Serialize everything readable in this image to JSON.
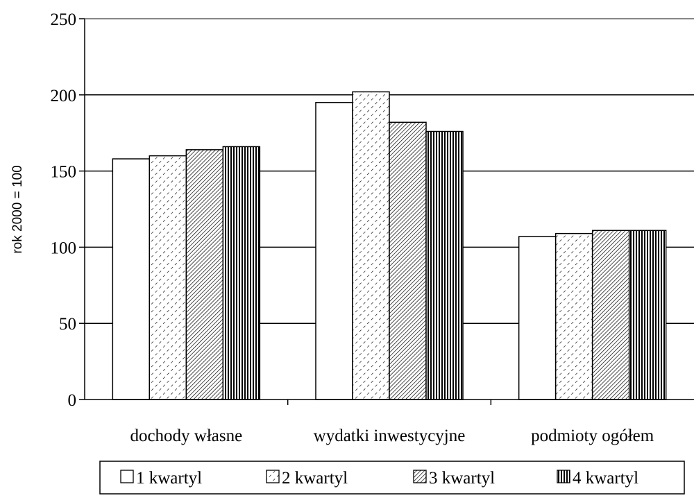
{
  "chart_data": {
    "type": "bar",
    "title": "",
    "xlabel": "",
    "ylabel": "rok 2000 = 100",
    "ylim": [
      0,
      250
    ],
    "yticks": [
      0,
      50,
      100,
      150,
      200,
      250
    ],
    "grid": true,
    "legend_position": "bottom",
    "categories": [
      "dochody własne",
      "wydatki inwestycyjne",
      "podmioty ogółem"
    ],
    "series": [
      {
        "name": "1 kwartyl",
        "values": [
          158,
          195,
          107
        ],
        "pattern": "solid-white"
      },
      {
        "name": "2 kwartyl",
        "values": [
          160,
          202,
          109
        ],
        "pattern": "dashed-diagonal"
      },
      {
        "name": "3 kwartyl",
        "values": [
          164,
          182,
          111
        ],
        "pattern": "dense-diagonal"
      },
      {
        "name": "4 kwartyl",
        "values": [
          166,
          176,
          111
        ],
        "pattern": "vertical-stripes"
      }
    ],
    "colors": {
      "stroke": "#000000",
      "fill": "#ffffff"
    }
  }
}
